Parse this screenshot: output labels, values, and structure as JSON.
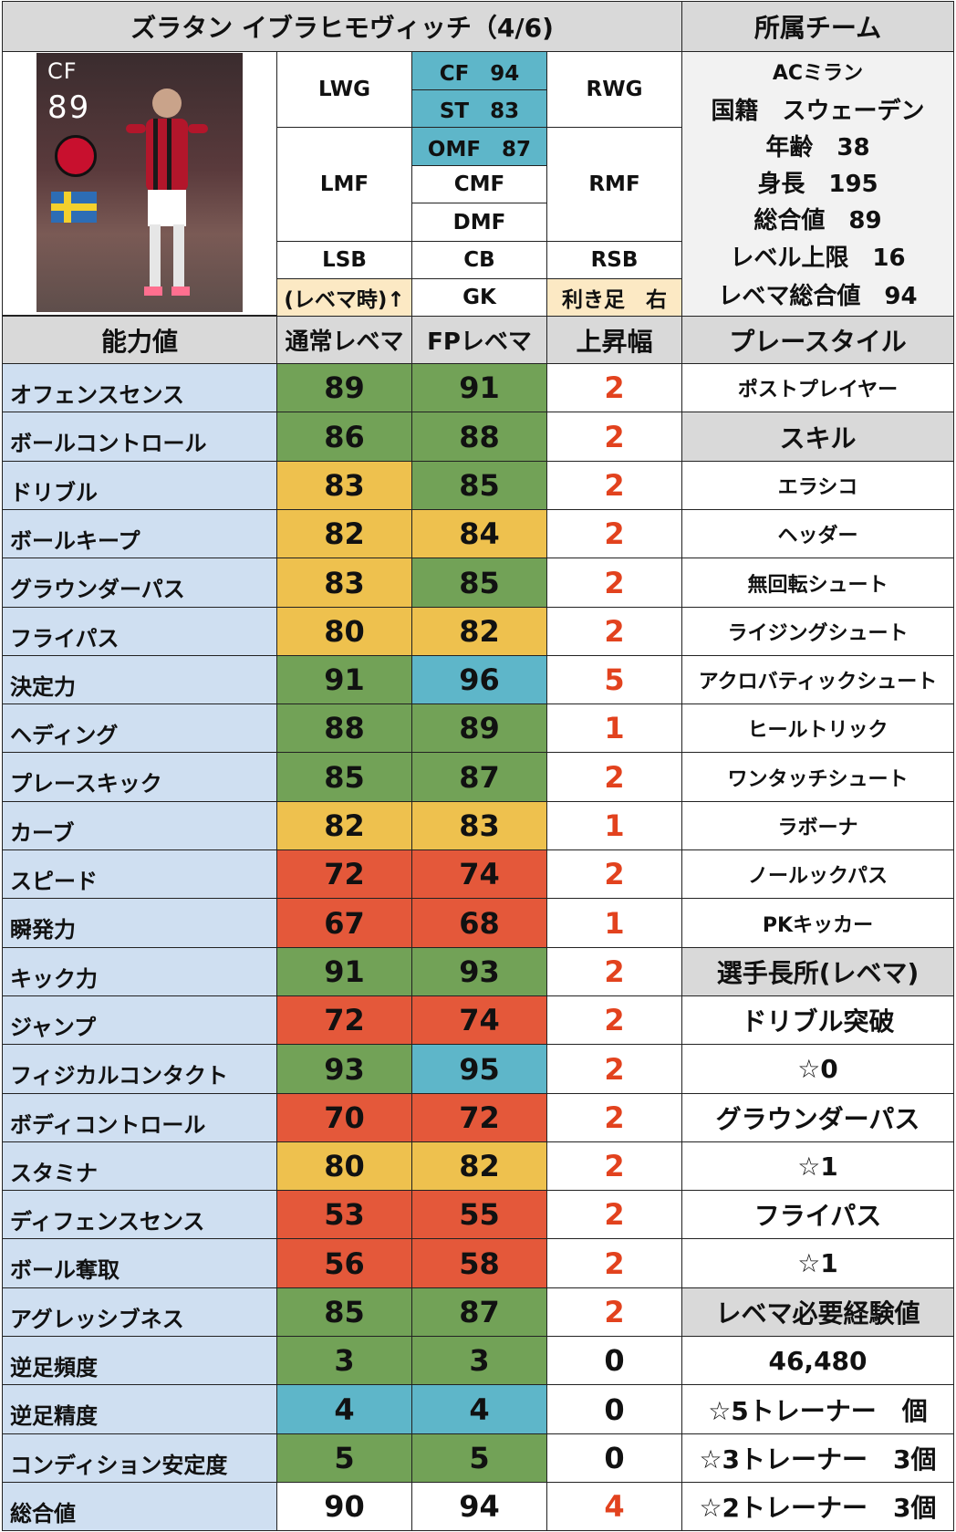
{
  "header": {
    "title": "ズラタン イブラヒモヴィッチ（4/6)",
    "team_title": "所属チーム"
  },
  "card": {
    "position": "CF",
    "rating": "89"
  },
  "positions": {
    "lwg": "LWG",
    "rwg": "RWG",
    "cf": "CF　94",
    "st": "ST　83",
    "lmf": "LMF",
    "rmf": "RMF",
    "omf": "OMF　87",
    "cmf": "CMF",
    "dmf": "DMF",
    "lsb": "LSB",
    "cb": "CB",
    "rsb": "RSB",
    "note": "(レベマ時)↑",
    "gk": "GK",
    "foot": "利き足　右"
  },
  "profile": {
    "team": "ACミラン",
    "nationality": "国籍　スウェーデン",
    "age": "年齢　38",
    "height": "身長　195",
    "overall": "総合値　89",
    "level_cap": "レベル上限　16",
    "max_overall": "レベマ総合値　94"
  },
  "stats_header": {
    "ability": "能力値",
    "normal": "通常レベマ",
    "fp": "FPレベマ",
    "increase": "上昇幅",
    "playstyle": "プレースタイル"
  },
  "stats": [
    {
      "name": "オフェンスセンス",
      "normal": "89",
      "fp": "91",
      "inc": "2",
      "nc": "green",
      "fc": "green"
    },
    {
      "name": "ボールコントロール",
      "normal": "86",
      "fp": "88",
      "inc": "2",
      "nc": "green",
      "fc": "green"
    },
    {
      "name": "ドリブル",
      "normal": "83",
      "fp": "85",
      "inc": "2",
      "nc": "yellow",
      "fc": "green"
    },
    {
      "name": "ボールキープ",
      "normal": "82",
      "fp": "84",
      "inc": "2",
      "nc": "yellow",
      "fc": "yellow"
    },
    {
      "name": "グラウンダーパス",
      "normal": "83",
      "fp": "85",
      "inc": "2",
      "nc": "yellow",
      "fc": "green"
    },
    {
      "name": "フライパス",
      "normal": "80",
      "fp": "82",
      "inc": "2",
      "nc": "yellow",
      "fc": "yellow"
    },
    {
      "name": "決定力",
      "normal": "91",
      "fp": "96",
      "inc": "5",
      "nc": "green",
      "fc": "teal"
    },
    {
      "name": "ヘディング",
      "normal": "88",
      "fp": "89",
      "inc": "1",
      "nc": "green",
      "fc": "green"
    },
    {
      "name": "プレースキック",
      "normal": "85",
      "fp": "87",
      "inc": "2",
      "nc": "green",
      "fc": "green"
    },
    {
      "name": "カーブ",
      "normal": "82",
      "fp": "83",
      "inc": "1",
      "nc": "yellow",
      "fc": "yellow"
    },
    {
      "name": "スピード",
      "normal": "72",
      "fp": "74",
      "inc": "2",
      "nc": "red",
      "fc": "red"
    },
    {
      "name": "瞬発力",
      "normal": "67",
      "fp": "68",
      "inc": "1",
      "nc": "red",
      "fc": "red"
    },
    {
      "name": "キック力",
      "normal": "91",
      "fp": "93",
      "inc": "2",
      "nc": "green",
      "fc": "green"
    },
    {
      "name": "ジャンプ",
      "normal": "72",
      "fp": "74",
      "inc": "2",
      "nc": "red",
      "fc": "red"
    },
    {
      "name": "フィジカルコンタクト",
      "normal": "93",
      "fp": "95",
      "inc": "2",
      "nc": "green",
      "fc": "teal"
    },
    {
      "name": "ボディコントロール",
      "normal": "70",
      "fp": "72",
      "inc": "2",
      "nc": "red",
      "fc": "red"
    },
    {
      "name": "スタミナ",
      "normal": "80",
      "fp": "82",
      "inc": "2",
      "nc": "yellow",
      "fc": "yellow"
    },
    {
      "name": "ディフェンスセンス",
      "normal": "53",
      "fp": "55",
      "inc": "2",
      "nc": "red",
      "fc": "red"
    },
    {
      "name": "ボール奪取",
      "normal": "56",
      "fp": "58",
      "inc": "2",
      "nc": "red",
      "fc": "red"
    },
    {
      "name": "アグレッシブネス",
      "normal": "85",
      "fp": "87",
      "inc": "2",
      "nc": "green",
      "fc": "green"
    },
    {
      "name": "逆足頻度",
      "normal": "3",
      "fp": "3",
      "inc": "0",
      "nc": "green",
      "fc": "green"
    },
    {
      "name": "逆足精度",
      "normal": "4",
      "fp": "4",
      "inc": "0",
      "nc": "teal",
      "fc": "teal"
    },
    {
      "name": "コンディション安定度",
      "normal": "5",
      "fp": "5",
      "inc": "0",
      "nc": "green",
      "fc": "green"
    },
    {
      "name": "総合値",
      "normal": "90",
      "fp": "94",
      "inc": "4",
      "nc": "white",
      "fc": "white"
    }
  ],
  "right_column": [
    {
      "text": "ポストプレイヤー",
      "style": "sk",
      "bg": "white"
    },
    {
      "text": "スキル",
      "style": "sk-big",
      "bg": "grey"
    },
    {
      "text": "エラシコ",
      "style": "sk",
      "bg": "white"
    },
    {
      "text": "ヘッダー",
      "style": "sk",
      "bg": "white"
    },
    {
      "text": "無回転シュート",
      "style": "sk",
      "bg": "white"
    },
    {
      "text": "ライジングシュート",
      "style": "sk",
      "bg": "white"
    },
    {
      "text": "アクロバティックシュート",
      "style": "sk",
      "bg": "white"
    },
    {
      "text": "ヒールトリック",
      "style": "sk",
      "bg": "white"
    },
    {
      "text": "ワンタッチシュート",
      "style": "sk",
      "bg": "white"
    },
    {
      "text": "ラボーナ",
      "style": "sk",
      "bg": "white"
    },
    {
      "text": "ノールックパス",
      "style": "sk",
      "bg": "white"
    },
    {
      "text": "PKキッカー",
      "style": "sk",
      "bg": "white"
    },
    {
      "text": "選手長所(レベマ)",
      "style": "sk-big",
      "bg": "grey"
    },
    {
      "text": "ドリブル突破",
      "style": "sk-big",
      "bg": "white"
    },
    {
      "text": "☆0",
      "style": "sk-big",
      "bg": "white"
    },
    {
      "text": "グラウンダーパス",
      "style": "sk-big",
      "bg": "white"
    },
    {
      "text": "☆1",
      "style": "sk-big",
      "bg": "white"
    },
    {
      "text": "フライパス",
      "style": "sk-big",
      "bg": "white"
    },
    {
      "text": "☆1",
      "style": "sk-big",
      "bg": "white"
    },
    {
      "text": "レベマ必要経験値",
      "style": "sk-big",
      "bg": "grey"
    },
    {
      "text": "46,480",
      "style": "sk-big",
      "bg": "white"
    },
    {
      "text": "☆5トレーナー　個",
      "style": "sk-big",
      "bg": "white"
    },
    {
      "text": "☆3トレーナー　3個",
      "style": "sk-big",
      "bg": "white"
    },
    {
      "text": "☆2トレーナー　3個",
      "style": "sk-big",
      "bg": "white"
    }
  ]
}
